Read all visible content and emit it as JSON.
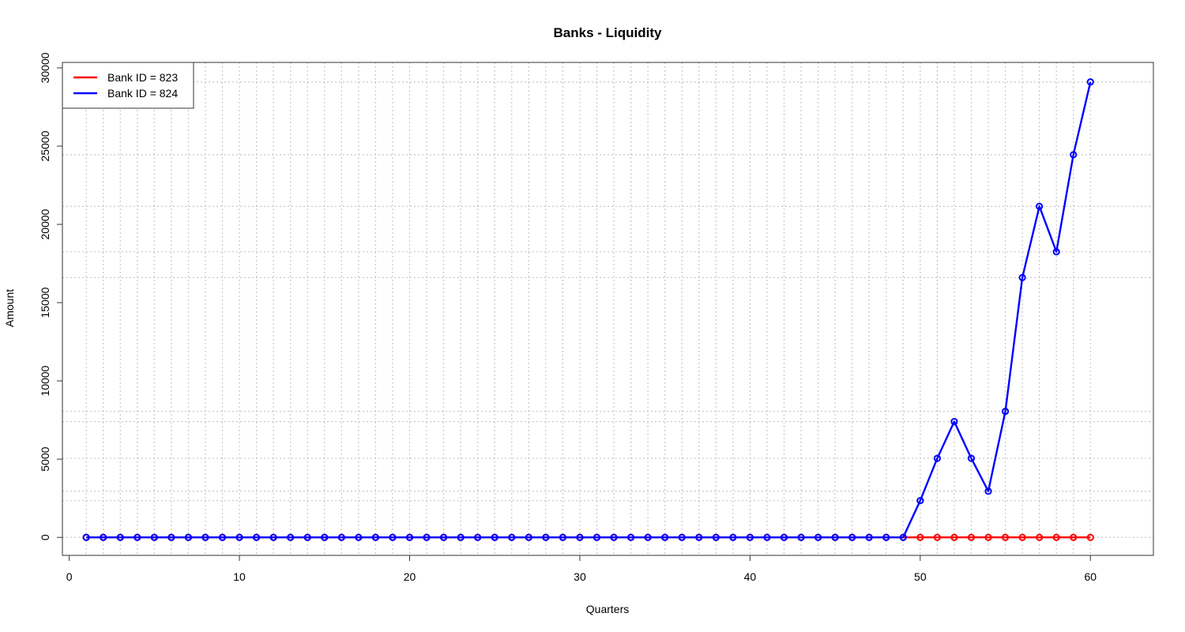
{
  "chart_data": {
    "type": "line",
    "title": "Banks - Liquidity",
    "xlabel": "Quarters",
    "ylabel": "Amount",
    "xlim": [
      -0.4,
      63.7
    ],
    "ylim": [
      -1150,
      30350
    ],
    "x_ticks": [
      0,
      10,
      20,
      30,
      40,
      50,
      60
    ],
    "y_ticks": [
      0,
      5000,
      10000,
      15000,
      20000,
      25000,
      30000
    ],
    "grid": true,
    "grid_style": "dotted",
    "grid_x": [
      1,
      2,
      3,
      4,
      5,
      6,
      7,
      8,
      9,
      10,
      11,
      12,
      13,
      14,
      15,
      16,
      17,
      18,
      19,
      20,
      21,
      22,
      23,
      24,
      25,
      26,
      27,
      28,
      29,
      30,
      31,
      32,
      33,
      34,
      35,
      36,
      37,
      38,
      39,
      40,
      41,
      42,
      43,
      44,
      45,
      46,
      47,
      48,
      49,
      50,
      51,
      52,
      53,
      54,
      55,
      56,
      57,
      58,
      59,
      60
    ],
    "grid_y": [
      0,
      2350,
      2950,
      5050,
      7400,
      8050,
      16600,
      18250,
      21150,
      24450,
      29100
    ],
    "legend_position": "top-left",
    "x": [
      1,
      2,
      3,
      4,
      5,
      6,
      7,
      8,
      9,
      10,
      11,
      12,
      13,
      14,
      15,
      16,
      17,
      18,
      19,
      20,
      21,
      22,
      23,
      24,
      25,
      26,
      27,
      28,
      29,
      30,
      31,
      32,
      33,
      34,
      35,
      36,
      37,
      38,
      39,
      40,
      41,
      42,
      43,
      44,
      45,
      46,
      47,
      48,
      49,
      50,
      51,
      52,
      53,
      54,
      55,
      56,
      57,
      58,
      59,
      60
    ],
    "series": [
      {
        "name": "Bank ID = 823",
        "color": "#ff0000",
        "values": [
          0,
          0,
          0,
          0,
          0,
          0,
          0,
          0,
          0,
          0,
          0,
          0,
          0,
          0,
          0,
          0,
          0,
          0,
          0,
          0,
          0,
          0,
          0,
          0,
          0,
          0,
          0,
          0,
          0,
          0,
          0,
          0,
          0,
          0,
          0,
          0,
          0,
          0,
          0,
          0,
          0,
          0,
          0,
          0,
          0,
          0,
          0,
          0,
          0,
          0,
          0,
          0,
          0,
          0,
          0,
          0,
          0,
          0,
          0,
          0
        ]
      },
      {
        "name": "Bank ID = 824",
        "color": "#0000ff",
        "values": [
          0,
          0,
          0,
          0,
          0,
          0,
          0,
          0,
          0,
          0,
          0,
          0,
          0,
          0,
          0,
          0,
          0,
          0,
          0,
          0,
          0,
          0,
          0,
          0,
          0,
          0,
          0,
          0,
          0,
          0,
          0,
          0,
          0,
          0,
          0,
          0,
          0,
          0,
          0,
          0,
          0,
          0,
          0,
          0,
          0,
          0,
          0,
          0,
          0,
          2350,
          5050,
          7400,
          5050,
          2950,
          8050,
          16600,
          21150,
          18250,
          24450,
          29100
        ]
      }
    ]
  }
}
